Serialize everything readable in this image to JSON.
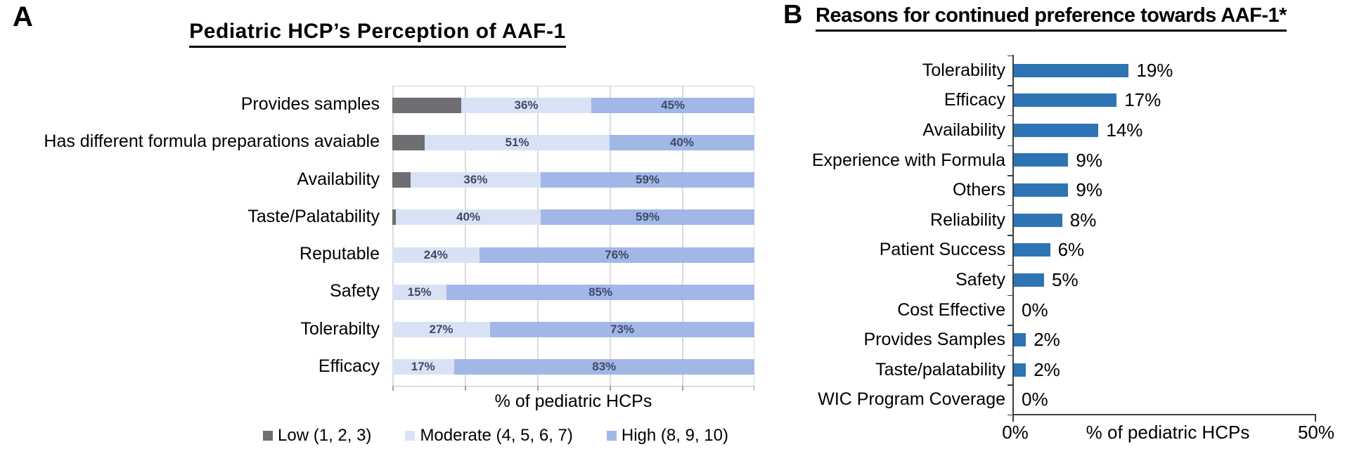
{
  "figure": {
    "panel_a_marker": "A",
    "panel_b_marker": "B"
  },
  "chart_data": [
    {
      "type": "bar",
      "panel": "A",
      "orientation": "horizontal",
      "stacked": true,
      "title": "Pediatric HCP’s Perception of AAF-1",
      "xlabel": "% of pediatric HCPs",
      "xlim": [
        0,
        100
      ],
      "gridline_step_pct": 20,
      "grid": true,
      "legend_position": "bottom",
      "data_label_color": "#3e4a66",
      "categories": [
        "Provides samples",
        "Has different formula preparations avaiable",
        "Availability",
        "Taste/Palatability",
        "Reputable",
        "Safety",
        "Tolerabilty",
        "Efficacy"
      ],
      "series": [
        {
          "name": "Low (1, 2, 3)",
          "color": "#6e6e73",
          "values": [
            19,
            9,
            5,
            1,
            0,
            0,
            0,
            0
          ],
          "labels": [
            "",
            "",
            "",
            "",
            "",
            "",
            "",
            ""
          ]
        },
        {
          "name": "Moderate (4, 5, 6, 7)",
          "color": "#d9e2f5",
          "values": [
            36,
            51,
            36,
            40,
            24,
            15,
            27,
            17
          ],
          "labels": [
            "36%",
            "51%",
            "36%",
            "40%",
            "24%",
            "15%",
            "27%",
            "17%"
          ]
        },
        {
          "name": "High (8, 9, 10)",
          "color": "#a2b7e8",
          "values": [
            45,
            40,
            59,
            59,
            76,
            85,
            73,
            83
          ],
          "labels": [
            "45%",
            "40%",
            "59%",
            "59%",
            "76%",
            "85%",
            "73%",
            "83%"
          ]
        }
      ]
    },
    {
      "type": "bar",
      "panel": "B",
      "orientation": "horizontal",
      "stacked": false,
      "title": "Reasons for continued preference towards AAF-1*",
      "xlabel": "% of pediatric HCPs",
      "xlim": [
        0,
        50
      ],
      "x_tick_labels": [
        "0%",
        "50%"
      ],
      "grid": false,
      "bar_color": "#2e74b5",
      "categories": [
        "Tolerability",
        "Efficacy",
        "Availability",
        "Experience with Formula",
        "Others",
        "Reliability",
        "Patient Success",
        "Safety",
        "Cost Effective",
        "Provides Samples",
        "Taste/palatability",
        "WIC Program Coverage"
      ],
      "values": [
        19,
        17,
        14,
        9,
        9,
        8,
        6,
        5,
        0,
        2,
        2,
        0
      ],
      "value_labels": [
        "19%",
        "17%",
        "14%",
        "9%",
        "9%",
        "8%",
        "6%",
        "5%",
        "0%",
        "2%",
        "2%",
        "0%"
      ]
    }
  ]
}
